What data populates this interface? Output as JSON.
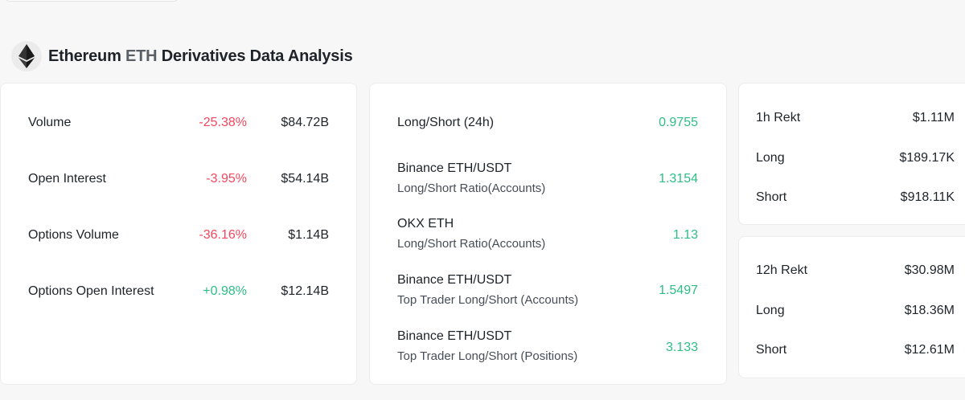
{
  "header": {
    "title_name": "Ethereum",
    "title_symbol": "ETH",
    "title_rest": "Derivatives Data Analysis",
    "logo_icon": "ethereum-icon"
  },
  "market": [
    {
      "label": "Volume",
      "change": "-25.38%",
      "value": "$84.72B",
      "direction": "down"
    },
    {
      "label": "Open Interest",
      "change": "-3.95%",
      "value": "$54.14B",
      "direction": "down"
    },
    {
      "label": "Options Volume",
      "change": "-36.16%",
      "value": "$1.14B",
      "direction": "down"
    },
    {
      "label": "Options Open Interest",
      "change": "+0.98%",
      "value": "$12.14B",
      "direction": "up"
    }
  ],
  "ratios": [
    {
      "label": "Long/Short (24h)",
      "sub": "",
      "value": "0.9755"
    },
    {
      "label": "Binance ETH/USDT",
      "sub": "Long/Short Ratio(Accounts)",
      "value": "1.3154"
    },
    {
      "label": "OKX ETH",
      "sub": "Long/Short Ratio(Accounts)",
      "value": "1.13"
    },
    {
      "label": "Binance ETH/USDT",
      "sub": "Top Trader Long/Short (Accounts)",
      "value": "1.5497"
    },
    {
      "label": "Binance ETH/USDT",
      "sub": "Top Trader Long/Short (Positions)",
      "value": "3.133"
    }
  ],
  "rekt_1h": {
    "title": "1h Rekt",
    "total": "$1.11M",
    "long_label": "Long",
    "long": "$189.17K",
    "short_label": "Short",
    "short": "$918.11K"
  },
  "rekt_12h": {
    "title": "12h Rekt",
    "total": "$30.98M",
    "long_label": "Long",
    "long": "$18.36M",
    "short_label": "Short",
    "short": "$12.61M"
  },
  "colors": {
    "negative": "#f6465d",
    "positive": "#2ebd85",
    "text": "#1e2329",
    "background": "#f7f7f7"
  }
}
